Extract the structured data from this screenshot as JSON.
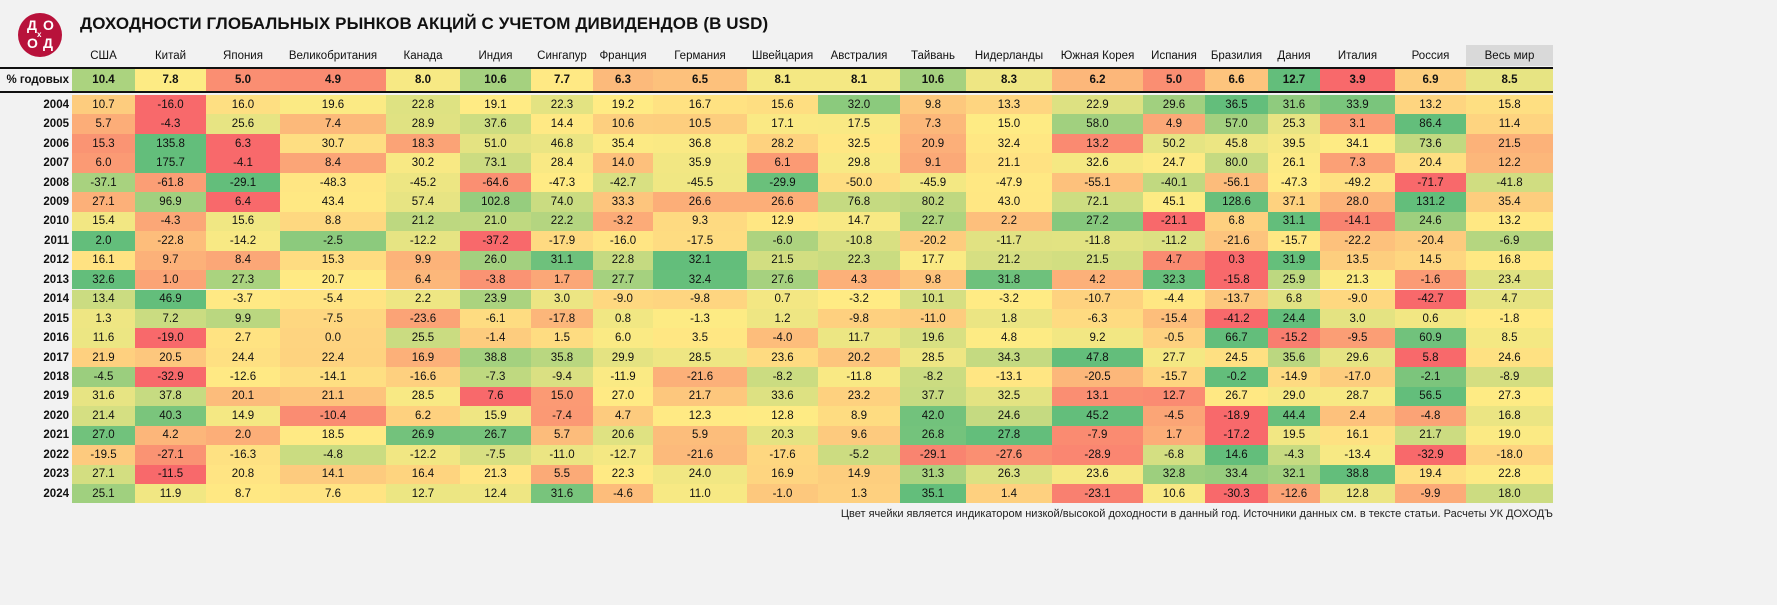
{
  "header": {
    "logo_text": "ДОХОДЪ",
    "title": "ДОХОДНОСТИ ГЛОБАЛЬНЫХ РЫНКОВ АКЦИЙ С УЧЕТОМ ДИВИДЕНДОВ (В USD)"
  },
  "chart_data": {
    "type": "heatmap",
    "title": "ДОХОДНОСТИ ГЛОБАЛЬНЫХ РЫНКОВ АКЦИЙ С УЧЕТОМ ДИВИДЕНДОВ (В USD)",
    "color_scale": {
      "low": "#F8696B",
      "mid": "#FFEB84",
      "high": "#63BE7B",
      "mode": "per-row"
    },
    "columns": [
      "США",
      "Китай",
      "Япония",
      "Великобритания",
      "Канада",
      "Индия",
      "Сингапур",
      "Франция",
      "Германия",
      "Швейцария",
      "Австралия",
      "Тайвань",
      "Нидерланды",
      "Южная Корея",
      "Испания",
      "Бразилия",
      "Дания",
      "Италия",
      "Россия",
      "Весь мир"
    ],
    "annual": {
      "label": "% годовых",
      "values": [
        "10.4",
        "7.8",
        "5.0",
        "4.9",
        "8.0",
        "10.6",
        "7.7",
        "6.3",
        "6.5",
        "8.1",
        "8.1",
        "10.6",
        "8.3",
        "6.2",
        "5.0",
        "6.6",
        "12.7",
        "3.9",
        "6.9",
        "8.5"
      ]
    },
    "rows": [
      {
        "year": "2004",
        "values": [
          "10.7",
          "-16.0",
          "16.0",
          "19.6",
          "22.8",
          "19.1",
          "22.3",
          "19.2",
          "16.7",
          "15.6",
          "32.0",
          "9.8",
          "13.3",
          "22.9",
          "29.6",
          "36.5",
          "31.6",
          "33.9",
          "13.2",
          "15.8"
        ]
      },
      {
        "year": "2005",
        "values": [
          "5.7",
          "-4.3",
          "25.6",
          "7.4",
          "28.9",
          "37.6",
          "14.4",
          "10.6",
          "10.5",
          "17.1",
          "17.5",
          "7.3",
          "15.0",
          "58.0",
          "4.9",
          "57.0",
          "25.3",
          "3.1",
          "86.4",
          "11.4"
        ]
      },
      {
        "year": "2006",
        "values": [
          "15.3",
          "135.8",
          "6.3",
          "30.7",
          "18.3",
          "51.0",
          "46.8",
          "35.4",
          "36.8",
          "28.2",
          "32.5",
          "20.9",
          "32.4",
          "13.2",
          "50.2",
          "45.8",
          "39.5",
          "34.1",
          "73.6",
          "21.5"
        ]
      },
      {
        "year": "2007",
        "values": [
          "6.0",
          "175.7",
          "-4.1",
          "8.4",
          "30.2",
          "73.1",
          "28.4",
          "14.0",
          "35.9",
          "6.1",
          "29.8",
          "9.1",
          "21.1",
          "32.6",
          "24.7",
          "80.0",
          "26.1",
          "7.3",
          "20.4",
          "12.2"
        ]
      },
      {
        "year": "2008",
        "values": [
          "-37.1",
          "-61.8",
          "-29.1",
          "-48.3",
          "-45.2",
          "-64.6",
          "-47.3",
          "-42.7",
          "-45.5",
          "-29.9",
          "-50.0",
          "-45.9",
          "-47.9",
          "-55.1",
          "-40.1",
          "-56.1",
          "-47.3",
          "-49.2",
          "-71.7",
          "-41.8"
        ]
      },
      {
        "year": "2009",
        "values": [
          "27.1",
          "96.9",
          "6.4",
          "43.4",
          "57.4",
          "102.8",
          "74.0",
          "33.3",
          "26.6",
          "26.6",
          "76.8",
          "80.2",
          "43.0",
          "72.1",
          "45.1",
          "128.6",
          "37.1",
          "28.0",
          "131.2",
          "35.4"
        ]
      },
      {
        "year": "2010",
        "values": [
          "15.4",
          "-4.3",
          "15.6",
          "8.8",
          "21.2",
          "21.0",
          "22.2",
          "-3.2",
          "9.3",
          "12.9",
          "14.7",
          "22.7",
          "2.2",
          "27.2",
          "-21.1",
          "6.8",
          "31.1",
          "-14.1",
          "24.6",
          "13.2"
        ]
      },
      {
        "year": "2011",
        "values": [
          "2.0",
          "-22.8",
          "-14.2",
          "-2.5",
          "-12.2",
          "-37.2",
          "-17.9",
          "-16.0",
          "-17.5",
          "-6.0",
          "-10.8",
          "-20.2",
          "-11.7",
          "-11.8",
          "-11.2",
          "-21.6",
          "-15.7",
          "-22.2",
          "-20.4",
          "-6.9"
        ]
      },
      {
        "year": "2012",
        "values": [
          "16.1",
          "9.7",
          "8.4",
          "15.3",
          "9.9",
          "26.0",
          "31.1",
          "22.8",
          "32.1",
          "21.5",
          "22.3",
          "17.7",
          "21.2",
          "21.5",
          "4.7",
          "0.3",
          "31.9",
          "13.5",
          "14.5",
          "16.8"
        ]
      },
      {
        "year": "2013",
        "values": [
          "32.6",
          "1.0",
          "27.3",
          "20.7",
          "6.4",
          "-3.8",
          "1.7",
          "27.7",
          "32.4",
          "27.6",
          "4.3",
          "9.8",
          "31.8",
          "4.2",
          "32.3",
          "-15.8",
          "25.9",
          "21.3",
          "-1.6",
          "23.4"
        ]
      },
      {
        "year": "2014",
        "values": [
          "13.4",
          "46.9",
          "-3.7",
          "-5.4",
          "2.2",
          "23.9",
          "3.0",
          "-9.0",
          "-9.8",
          "0.7",
          "-3.2",
          "10.1",
          "-3.2",
          "-10.7",
          "-4.4",
          "-13.7",
          "6.8",
          "-9.0",
          "-42.7",
          "4.7"
        ]
      },
      {
        "year": "2015",
        "values": [
          "1.3",
          "7.2",
          "9.9",
          "-7.5",
          "-23.6",
          "-6.1",
          "-17.8",
          "0.8",
          "-1.3",
          "1.2",
          "-9.8",
          "-11.0",
          "1.8",
          "-6.3",
          "-15.4",
          "-41.2",
          "24.4",
          "3.0",
          "0.6",
          "-1.8"
        ]
      },
      {
        "year": "2016",
        "values": [
          "11.6",
          "-19.0",
          "2.7",
          "0.0",
          "25.5",
          "-1.4",
          "1.5",
          "6.0",
          "3.5",
          "-4.0",
          "11.7",
          "19.6",
          "4.8",
          "9.2",
          "-0.5",
          "66.7",
          "-15.2",
          "-9.5",
          "60.9",
          "8.5"
        ]
      },
      {
        "year": "2017",
        "values": [
          "21.9",
          "20.5",
          "24.4",
          "22.4",
          "16.9",
          "38.8",
          "35.8",
          "29.9",
          "28.5",
          "23.6",
          "20.2",
          "28.5",
          "34.3",
          "47.8",
          "27.7",
          "24.5",
          "35.6",
          "29.6",
          "5.8",
          "24.6"
        ]
      },
      {
        "year": "2018",
        "values": [
          "-4.5",
          "-32.9",
          "-12.6",
          "-14.1",
          "-16.6",
          "-7.3",
          "-9.4",
          "-11.9",
          "-21.6",
          "-8.2",
          "-11.8",
          "-8.2",
          "-13.1",
          "-20.5",
          "-15.7",
          "-0.2",
          "-14.9",
          "-17.0",
          "-2.1",
          "-8.9"
        ]
      },
      {
        "year": "2019",
        "values": [
          "31.6",
          "37.8",
          "20.1",
          "21.1",
          "28.5",
          "7.6",
          "15.0",
          "27.0",
          "21.7",
          "33.6",
          "23.2",
          "37.7",
          "32.5",
          "13.1",
          "12.7",
          "26.7",
          "29.0",
          "28.7",
          "56.5",
          "27.3"
        ]
      },
      {
        "year": "2020",
        "values": [
          "21.4",
          "40.3",
          "14.9",
          "-10.4",
          "6.2",
          "15.9",
          "-7.4",
          "4.7",
          "12.3",
          "12.8",
          "8.9",
          "42.0",
          "24.6",
          "45.2",
          "-4.5",
          "-18.9",
          "44.4",
          "2.4",
          "-4.8",
          "16.8"
        ]
      },
      {
        "year": "2021",
        "values": [
          "27.0",
          "4.2",
          "2.0",
          "18.5",
          "26.9",
          "26.7",
          "5.7",
          "20.6",
          "5.9",
          "20.3",
          "9.6",
          "26.8",
          "27.8",
          "-7.9",
          "1.7",
          "-17.2",
          "19.5",
          "16.1",
          "21.7",
          "19.0"
        ]
      },
      {
        "year": "2022",
        "values": [
          "-19.5",
          "-27.1",
          "-16.3",
          "-4.8",
          "-12.2",
          "-7.5",
          "-11.0",
          "-12.7",
          "-21.6",
          "-17.6",
          "-5.2",
          "-29.1",
          "-27.6",
          "-28.9",
          "-6.8",
          "14.6",
          "-4.3",
          "-13.4",
          "-32.9",
          "-18.0"
        ]
      },
      {
        "year": "2023",
        "values": [
          "27.1",
          "-11.5",
          "20.8",
          "14.1",
          "16.4",
          "21.3",
          "5.5",
          "22.3",
          "24.0",
          "16.9",
          "14.9",
          "31.3",
          "26.3",
          "23.6",
          "32.8",
          "33.4",
          "32.1",
          "38.8",
          "19.4",
          "22.8"
        ]
      },
      {
        "year": "2024",
        "values": [
          "25.1",
          "11.9",
          "8.7",
          "7.6",
          "12.7",
          "12.4",
          "31.6",
          "-4.6",
          "11.0",
          "-1.0",
          "1.3",
          "35.1",
          "1.4",
          "-23.1",
          "10.6",
          "-30.3",
          "-12.6",
          "12.8",
          "-9.9",
          "18.0"
        ]
      }
    ]
  },
  "footer": {
    "note": "Цвет ячейки является индикатором  низкой/высокой  доходности  в данный год. Источники данных см.  в тексте статьи.  Расчеты УК ДОХОДЪ"
  }
}
